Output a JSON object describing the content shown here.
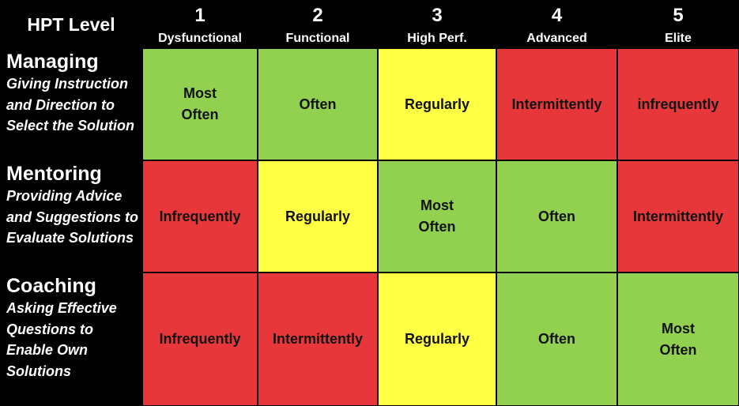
{
  "corner_label": "HPT Level",
  "columns": [
    {
      "number": "1",
      "name": "Dysfunctional"
    },
    {
      "number": "2",
      "name": "Functional"
    },
    {
      "number": "3",
      "name": "High Perf."
    },
    {
      "number": "4",
      "name": "Advanced"
    },
    {
      "number": "5",
      "name": "Elite"
    }
  ],
  "rows": [
    {
      "title": "Managing",
      "description": "Giving Instruction and Direction to Select the Solution"
    },
    {
      "title": "Mentoring",
      "description": "Providing Advice and Suggestions to Evaluate Solutions"
    },
    {
      "title": "Coaching",
      "description": "Asking Effective Questions to Enable Own Solutions"
    }
  ],
  "cells": [
    [
      {
        "text": "Most\nOften",
        "status": "green"
      },
      {
        "text": "Often",
        "status": "green"
      },
      {
        "text": "Regularly",
        "status": "yellow"
      },
      {
        "text": "Intermittently",
        "status": "red"
      },
      {
        "text": "infrequently",
        "status": "red"
      }
    ],
    [
      {
        "text": "Infrequently",
        "status": "red"
      },
      {
        "text": "Regularly",
        "status": "yellow"
      },
      {
        "text": "Most\nOften",
        "status": "green"
      },
      {
        "text": "Often",
        "status": "green"
      },
      {
        "text": "Intermittently",
        "status": "red"
      }
    ],
    [
      {
        "text": "Infrequently",
        "status": "red"
      },
      {
        "text": "Intermittently",
        "status": "red"
      },
      {
        "text": "Regularly",
        "status": "yellow"
      },
      {
        "text": "Often",
        "status": "green"
      },
      {
        "text": "Most\nOften",
        "status": "green"
      }
    ]
  ],
  "colors": {
    "green": "#92d050",
    "yellow": "#ffff44",
    "red": "#e8373a",
    "background": "#000000",
    "header_text": "#ffffff"
  }
}
